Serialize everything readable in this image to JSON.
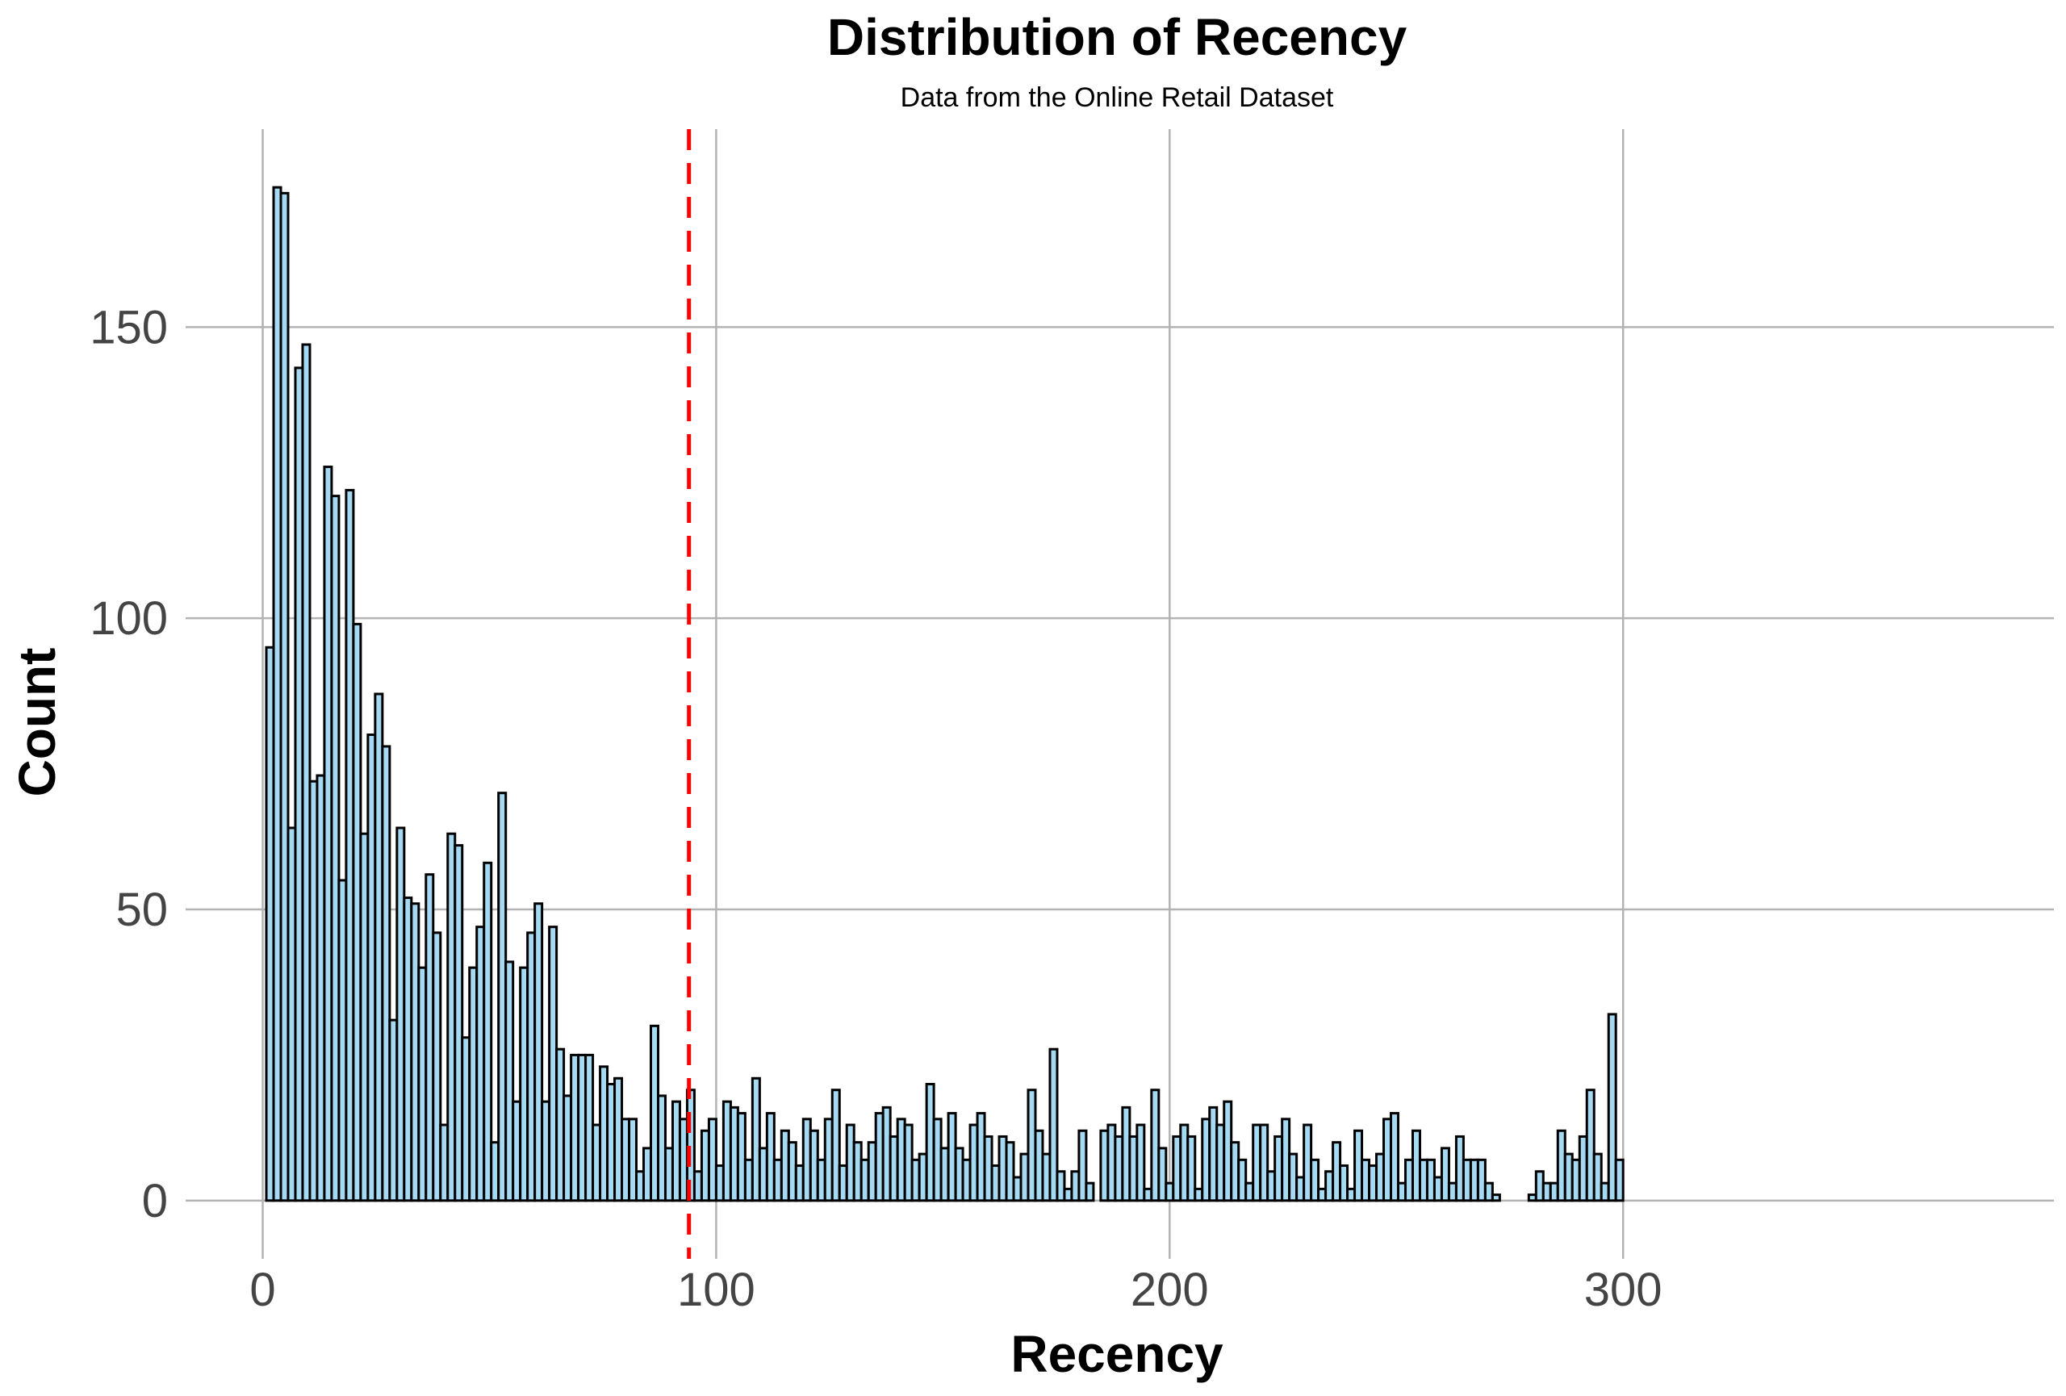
{
  "chart_data": {
    "type": "bar",
    "title": "Distribution of Recency",
    "subtitle": "Data from the Online Retail Dataset",
    "xlabel": "Recency",
    "ylabel": "Count",
    "xlim": [
      -17,
      395
    ],
    "ylim": [
      -10,
      184
    ],
    "x_ticks": [
      0,
      100,
      200,
      300
    ],
    "y_ticks": [
      0,
      50,
      100,
      150
    ],
    "grid": true,
    "bin_width": 1.6,
    "bin_start": 0.8,
    "bar_fill": "#a6d9f2",
    "bar_stroke": "#000000",
    "reference_line": {
      "x": 94,
      "color": "#ff0000",
      "style": "dashed"
    },
    "values": [
      95,
      174,
      173,
      64,
      143,
      147,
      72,
      73,
      126,
      121,
      55,
      122,
      99,
      63,
      80,
      87,
      78,
      31,
      64,
      52,
      51,
      40,
      56,
      46,
      13,
      63,
      61,
      28,
      40,
      47,
      58,
      10,
      70,
      41,
      17,
      40,
      46,
      51,
      17,
      47,
      26,
      18,
      25,
      25,
      25,
      13,
      23,
      20,
      21,
      14,
      14,
      5,
      9,
      30,
      18,
      9,
      17,
      14,
      19,
      5,
      12,
      14,
      6,
      17,
      16,
      15,
      7,
      21,
      9,
      15,
      7,
      12,
      10,
      6,
      14,
      12,
      7,
      14,
      19,
      6,
      13,
      10,
      7,
      10,
      15,
      16,
      11,
      14,
      13,
      7,
      8,
      20,
      14,
      9,
      15,
      9,
      7,
      13,
      15,
      11,
      6,
      11,
      10,
      4,
      8,
      19,
      12,
      8,
      26,
      5,
      2,
      5,
      12,
      3,
      0,
      12,
      13,
      11,
      16,
      11,
      13,
      2,
      19,
      9,
      3,
      11,
      13,
      11,
      2,
      14,
      16,
      13,
      17,
      10,
      7,
      3,
      13,
      13,
      5,
      11,
      14,
      8,
      4,
      13,
      7,
      2,
      5,
      10,
      6,
      2,
      12,
      7,
      6,
      8,
      14,
      15,
      3,
      7,
      12,
      7,
      7,
      4,
      9,
      3,
      11,
      7,
      7,
      7,
      3,
      1,
      0,
      0,
      0,
      0,
      1,
      5,
      3,
      3,
      12,
      8,
      7,
      11,
      19,
      8,
      3,
      32,
      7
    ]
  }
}
